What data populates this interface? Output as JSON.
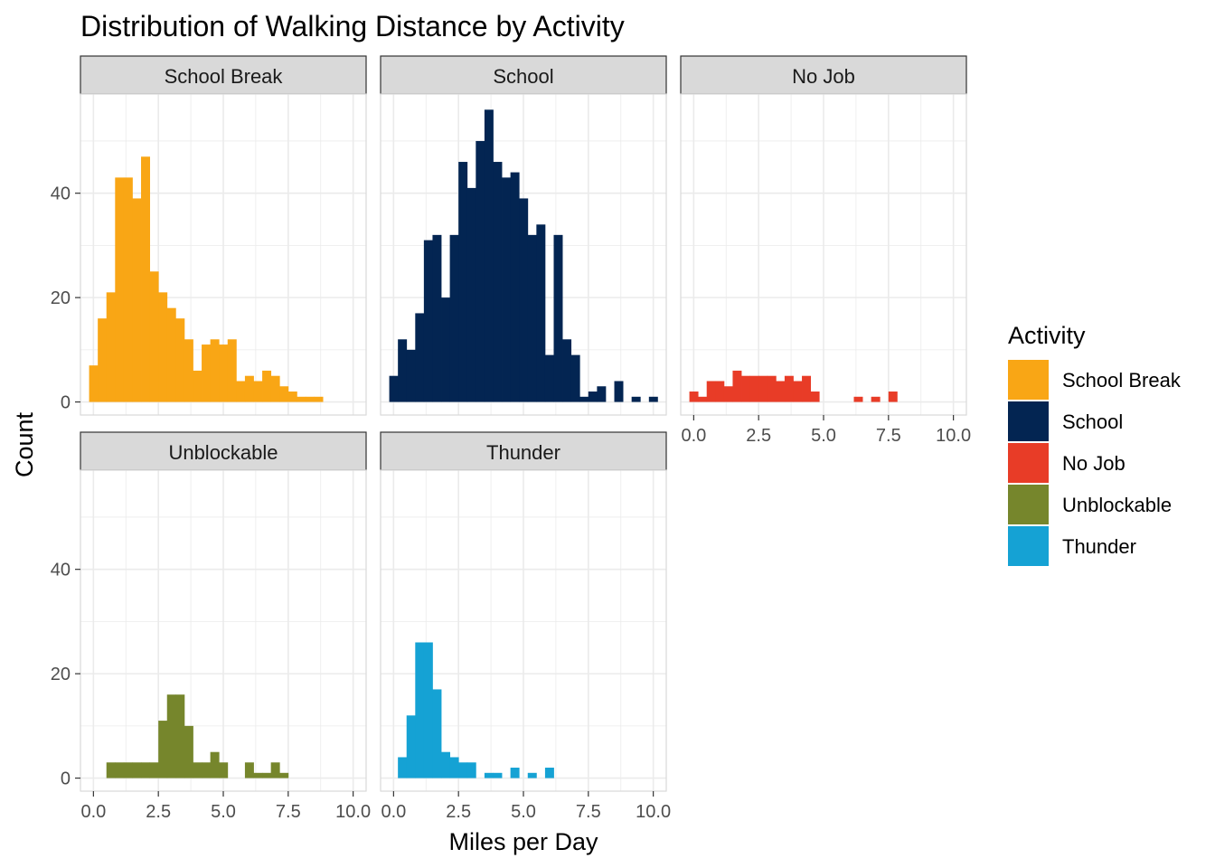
{
  "chart_data": {
    "type": "bar",
    "title": "Distribution of Walking Distance by Activity",
    "xlabel": "Miles per Day",
    "ylabel": "Count",
    "xlim": [
      -0.5,
      10.5
    ],
    "ylim": [
      -2.5,
      59
    ],
    "x_ticks": [
      0,
      2.5,
      5,
      7.5,
      10
    ],
    "x_tick_labels": [
      "0.0",
      "2.5",
      "5.0",
      "7.5",
      "10.0"
    ],
    "y_ticks": [
      0,
      20,
      40
    ],
    "y_tick_labels": [
      "0",
      "20",
      "40"
    ],
    "grid": true,
    "bin_width": 0.3333,
    "legend": {
      "title": "Activity",
      "position": "right",
      "items": [
        {
          "label": "School Break",
          "color": "#F9A615"
        },
        {
          "label": "School",
          "color": "#032552"
        },
        {
          "label": "No Job",
          "color": "#E83C27"
        },
        {
          "label": "Unblockable",
          "color": "#76862C"
        },
        {
          "label": "Thunder",
          "color": "#15A2D4"
        }
      ]
    },
    "facets": [
      {
        "name": "School Break",
        "color": "#F9A615",
        "bin_start": -0.1667,
        "counts": [
          7,
          16,
          21,
          43,
          43,
          39,
          47,
          25,
          21,
          18,
          16,
          12,
          6,
          11,
          12,
          11,
          12,
          4,
          5,
          4,
          6,
          5,
          3,
          2,
          1,
          1,
          1
        ]
      },
      {
        "name": "School",
        "color": "#032552",
        "bin_start": -0.1667,
        "counts": [
          5,
          12,
          10,
          17,
          31,
          32,
          20,
          32,
          46,
          41,
          50,
          56,
          46,
          43,
          44,
          39,
          32,
          34,
          9,
          32,
          12,
          9,
          1,
          2,
          3,
          0,
          4,
          0,
          1,
          0,
          1
        ]
      },
      {
        "name": "No Job",
        "color": "#E83C27",
        "bin_start": -0.1667,
        "counts": [
          2,
          1,
          4,
          4,
          3,
          6,
          5,
          5,
          5,
          5,
          4,
          5,
          4,
          5,
          2,
          0,
          0,
          0,
          0,
          1,
          0,
          1,
          0,
          2
        ]
      },
      {
        "name": "Unblockable",
        "color": "#76862C",
        "bin_start": 0.5,
        "counts": [
          3,
          3,
          3,
          3,
          3,
          3,
          11,
          16,
          16,
          10,
          3,
          3,
          5,
          3,
          0,
          0,
          3,
          1,
          1,
          3,
          1
        ]
      },
      {
        "name": "Thunder",
        "color": "#15A2D4",
        "bin_start": 0.1667,
        "counts": [
          4,
          12,
          26,
          26,
          17,
          5,
          4,
          3,
          3,
          0,
          1,
          1,
          0,
          2,
          0,
          1,
          0,
          2
        ]
      }
    ]
  }
}
